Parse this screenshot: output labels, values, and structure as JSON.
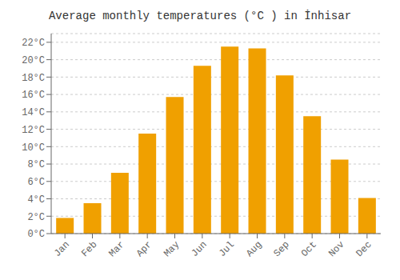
{
  "chart_data": {
    "type": "bar",
    "title": "Average monthly temperatures (°C ) in İnhisar",
    "categories": [
      "Jan",
      "Feb",
      "Mar",
      "Apr",
      "May",
      "Jun",
      "Jul",
      "Aug",
      "Sep",
      "Oct",
      "Nov",
      "Dec"
    ],
    "values": [
      1.8,
      3.5,
      7.0,
      11.5,
      15.7,
      19.3,
      21.5,
      21.3,
      18.2,
      13.5,
      8.5,
      4.1
    ],
    "color": "#F0A000",
    "ylim": [
      0,
      23
    ],
    "yticks": [
      {
        "value": 0,
        "label": "0°C"
      },
      {
        "value": 2,
        "label": "2°C"
      },
      {
        "value": 4,
        "label": "4°C"
      },
      {
        "value": 6,
        "label": "6°C"
      },
      {
        "value": 8,
        "label": "8°C"
      },
      {
        "value": 10,
        "label": "10°C"
      },
      {
        "value": 12,
        "label": "12°C"
      },
      {
        "value": 14,
        "label": "14°C"
      },
      {
        "value": 16,
        "label": "16°C"
      },
      {
        "value": 18,
        "label": "18°C"
      },
      {
        "value": 20,
        "label": "20°C"
      },
      {
        "value": 22,
        "label": "22°C"
      }
    ],
    "grid": true
  }
}
